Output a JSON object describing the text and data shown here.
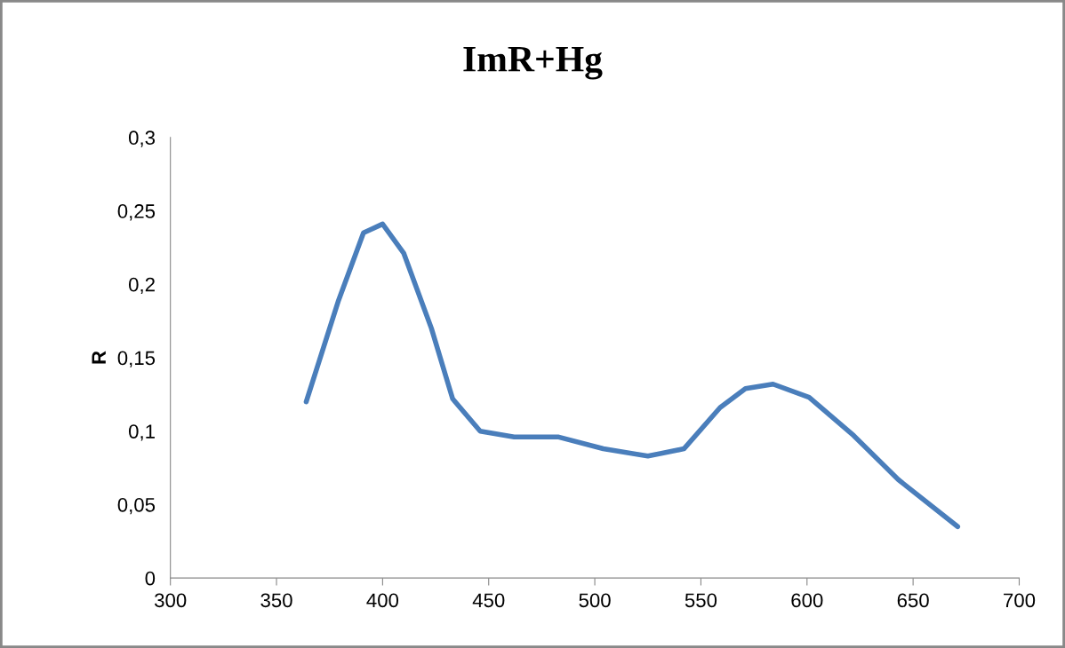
{
  "chart_data": {
    "type": "line",
    "title": "ImR+Hg",
    "ylabel": "R",
    "series": [
      {
        "color": "#4a7ebb",
        "x": [
          364,
          379,
          391,
          400,
          410,
          423,
          433,
          446,
          462,
          483,
          504,
          525,
          542,
          559,
          571,
          584,
          601,
          622,
          643,
          671
        ],
        "values": [
          0.12,
          0.188,
          0.235,
          0.241,
          0.221,
          0.17,
          0.122,
          0.1,
          0.096,
          0.096,
          0.088,
          0.083,
          0.088,
          0.116,
          0.129,
          0.132,
          0.123,
          0.097,
          0.067,
          0.035
        ]
      }
    ],
    "xlim": [
      300,
      700
    ],
    "xticks": [
      300,
      350,
      400,
      450,
      500,
      550,
      600,
      650,
      700
    ],
    "ylim": [
      0,
      0.3
    ],
    "yticks": [
      0,
      {
        "value": 0.05,
        "label": "0,05"
      },
      {
        "value": 0.1,
        "label": "0,1"
      },
      {
        "value": 0.15,
        "label": "0,15"
      },
      {
        "value": 0.2,
        "label": "0,2"
      },
      {
        "value": 0.25,
        "label": "0,25"
      },
      {
        "value": 0.3,
        "label": "0,3"
      }
    ],
    "grid": false,
    "legend": false,
    "marker": "none",
    "line_style": "solid"
  }
}
